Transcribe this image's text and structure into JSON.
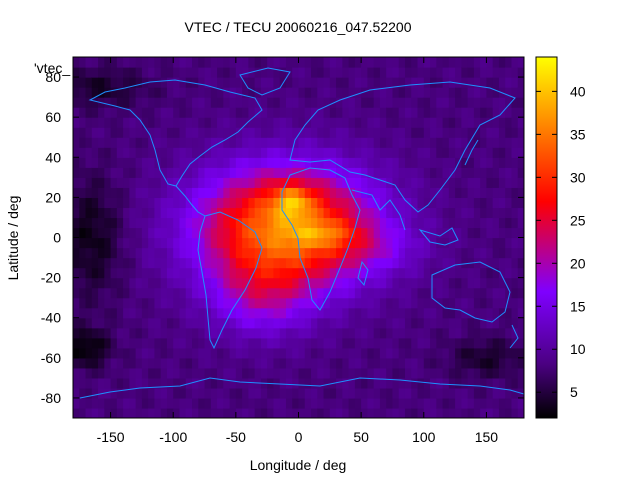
{
  "chart_data": {
    "type": "heatmap",
    "title": "VTEC / TECU 20060216_047.52200",
    "legend_label": "'vtec_",
    "xlabel": "Longitude / deg",
    "ylabel": "Latitude / deg",
    "xlim": [
      -180,
      180
    ],
    "ylim": [
      -90,
      90
    ],
    "x_ticks": [
      -150,
      -100,
      -50,
      0,
      50,
      100,
      150
    ],
    "y_ticks": [
      80,
      60,
      40,
      20,
      0,
      -20,
      -40,
      -60,
      -80
    ],
    "colorbar": {
      "range": [
        2,
        44
      ],
      "ticks": [
        5,
        10,
        15,
        20,
        25,
        30,
        35,
        40
      ],
      "colormap": [
        "#000000",
        "#4b0082",
        "#7f00ff",
        "#ff0000",
        "#ff8c00",
        "#ffff00"
      ]
    },
    "grid": false,
    "legend_position": "top-left",
    "overlay": "coastlines",
    "coastline_color": "#1e90ff",
    "background_level": 8,
    "enhancements": [
      {
        "lon": -10,
        "lat": 5,
        "peak": 28,
        "sx": 70,
        "sy": 30
      },
      {
        "lon": -30,
        "lat": -30,
        "peak": 8,
        "sx": 40,
        "sy": 20
      },
      {
        "lon": 60,
        "lat": -5,
        "peak": 4,
        "sx": 40,
        "sy": 12
      },
      {
        "lon": -5,
        "lat": 18,
        "peak": 10,
        "sx": 15,
        "sy": 8
      },
      {
        "lon": 20,
        "lat": 2,
        "peak": 6,
        "sx": 25,
        "sy": 6
      }
    ],
    "depletions": [
      {
        "lon": -165,
        "lat": 0,
        "depth": 5,
        "sx": 25,
        "sy": 30
      },
      {
        "lon": -170,
        "lat": -55,
        "depth": 6,
        "sx": 20,
        "sy": 10
      },
      {
        "lon": -160,
        "lat": 75,
        "depth": 4,
        "sx": 40,
        "sy": 10
      },
      {
        "lon": 150,
        "lat": -60,
        "depth": 4,
        "sx": 30,
        "sy": 10
      }
    ]
  }
}
